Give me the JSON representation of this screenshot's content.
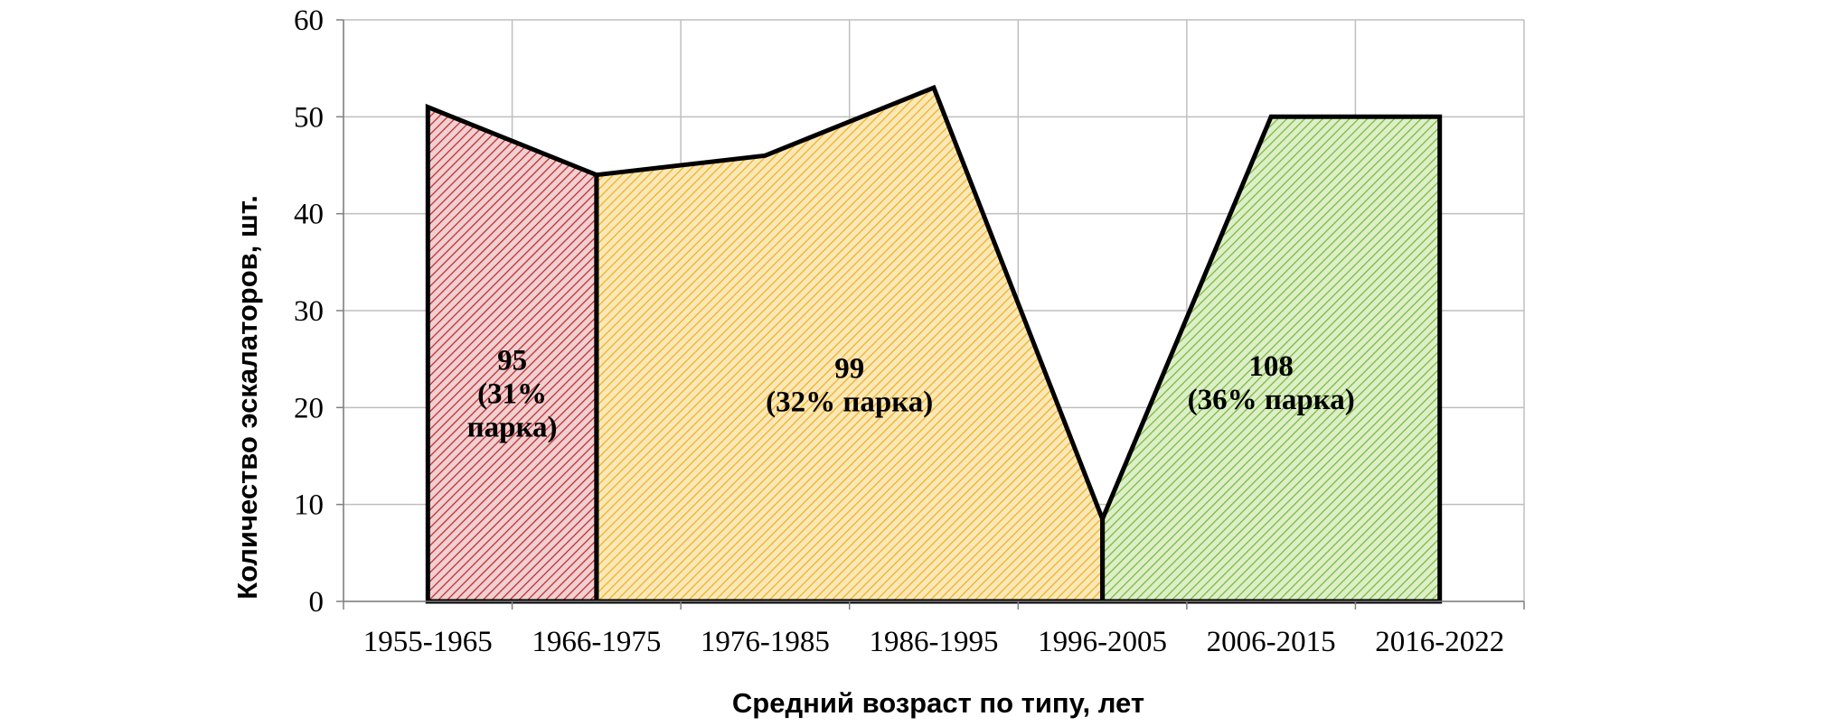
{
  "chart_data": {
    "type": "area",
    "categories": [
      "1955-1965",
      "1966-1975",
      "1976-1985",
      "1986-1995",
      "1996-2005",
      "2006-2015",
      "2016-2022"
    ],
    "title": "",
    "xlabel": "Средний возраст по типу, лет",
    "ylabel": "Количество эскалаторов, шт.",
    "ylim": [
      0,
      60
    ],
    "yticks": [
      0,
      10,
      20,
      30,
      40,
      50,
      60
    ],
    "grid": true,
    "legend": "none",
    "points": [
      {
        "x": 0.5,
        "y": 51
      },
      {
        "x": 1.5,
        "y": 44
      },
      {
        "x": 2.5,
        "y": 46
      },
      {
        "x": 3.5,
        "y": 53
      },
      {
        "x": 4.5,
        "y": 8.5
      },
      {
        "x": 5.5,
        "y": 50
      },
      {
        "x": 6.5,
        "y": 50
      }
    ],
    "regions": [
      {
        "x_from": 0.5,
        "x_to": 1.5,
        "color": "#c0282d",
        "fill": "#f0d0d0",
        "label_lines": [
          "95",
          "(31%",
          "парка)"
        ]
      },
      {
        "x_from": 1.5,
        "x_to": 4.5,
        "color": "#f0b020",
        "fill": "#fbe8b8",
        "label_lines": [
          "99",
          "(32% парка)"
        ]
      },
      {
        "x_from": 4.5,
        "x_to": 6.5,
        "color": "#79b83a",
        "fill": "#ddefc8",
        "label_lines": [
          "108",
          "(36% парка)"
        ]
      }
    ]
  }
}
